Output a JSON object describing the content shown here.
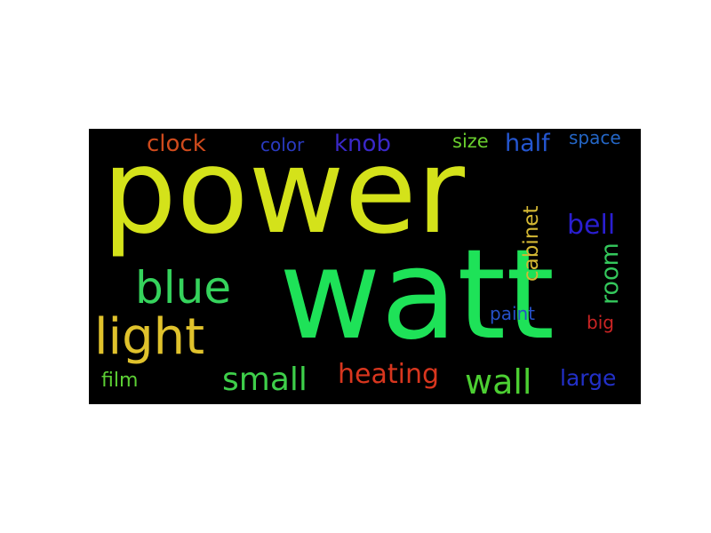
{
  "words": {
    "power": {
      "text": "power",
      "color": "#d4e21a"
    },
    "watt": {
      "text": "watt",
      "color": "#1ee258"
    },
    "blue": {
      "text": "blue",
      "color": "#35d35c"
    },
    "light": {
      "text": "light",
      "color": "#e0c22c"
    },
    "small": {
      "text": "small",
      "color": "#3ecf4a"
    },
    "heating": {
      "text": "heating",
      "color": "#d8361e"
    },
    "wall": {
      "text": "wall",
      "color": "#4ccf32"
    },
    "large": {
      "text": "large",
      "color": "#2230c8"
    },
    "film": {
      "text": "film",
      "color": "#5ccf34"
    },
    "clock": {
      "text": "clock",
      "color": "#cf4a1c"
    },
    "color": {
      "text": "color",
      "color": "#2a3ac0"
    },
    "knob": {
      "text": "knob",
      "color": "#3a28c8"
    },
    "size": {
      "text": "size",
      "color": "#6acf2e"
    },
    "half": {
      "text": "half",
      "color": "#2456d0"
    },
    "space": {
      "text": "space",
      "color": "#2466c6"
    },
    "bell": {
      "text": "bell",
      "color": "#2a1ed0"
    },
    "paint": {
      "text": "paint",
      "color": "#2650c8"
    },
    "big": {
      "text": "big",
      "color": "#cc2424"
    },
    "cabinet": {
      "text": "cabinet",
      "color": "#d4b834"
    },
    "room": {
      "text": "room",
      "color": "#34c85c"
    }
  }
}
